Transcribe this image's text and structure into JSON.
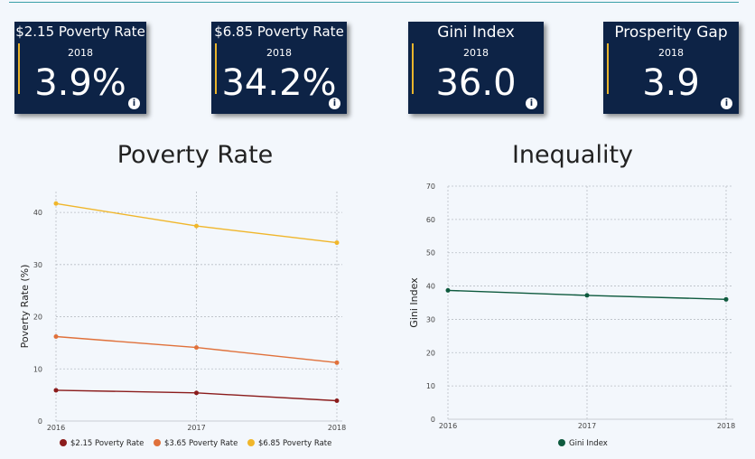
{
  "kpis": [
    {
      "title": "$2.15 Poverty Rate",
      "year": "2018",
      "value": "3.9%"
    },
    {
      "title": "$6.85 Poverty Rate",
      "year": "2018",
      "value": "34.2%"
    },
    {
      "title": "Gini Index",
      "year": "2018",
      "value": "36.0"
    },
    {
      "title": "Prosperity Gap",
      "year": "2018",
      "value": "3.9"
    }
  ],
  "colors": {
    "kpi_background": "#0d2346",
    "kpi_accent": "#e9b52c",
    "series_215": "#8b1c1c",
    "series_365": "#e0713b",
    "series_685": "#f0b62b",
    "gini": "#0e5a3e"
  },
  "chart_data": [
    {
      "type": "line",
      "title": "Poverty Rate",
      "xlabel": "",
      "ylabel": "Poverty Rate (%)",
      "x": [
        "2016",
        "2017",
        "2018"
      ],
      "ylim": [
        0,
        44
      ],
      "yticks": [
        0,
        10,
        20,
        30,
        40
      ],
      "grid": true,
      "legend": "bottom",
      "series": [
        {
          "name": "$2.15 Poverty Rate",
          "values": [
            5.9,
            5.4,
            3.9
          ]
        },
        {
          "name": "$3.65 Poverty Rate",
          "values": [
            16.2,
            14.1,
            11.2
          ]
        },
        {
          "name": "$6.85 Poverty Rate",
          "values": [
            41.7,
            37.4,
            34.2
          ]
        }
      ]
    },
    {
      "type": "line",
      "title": "Inequality",
      "xlabel": "",
      "ylabel": "Gini Index",
      "x": [
        "2016",
        "2017",
        "2018"
      ],
      "ylim": [
        0,
        70
      ],
      "yticks": [
        0,
        10,
        20,
        30,
        40,
        50,
        60,
        70
      ],
      "grid": true,
      "legend": "bottom",
      "series": [
        {
          "name": "Gini Index",
          "values": [
            38.7,
            37.2,
            36.0
          ]
        }
      ]
    }
  ]
}
